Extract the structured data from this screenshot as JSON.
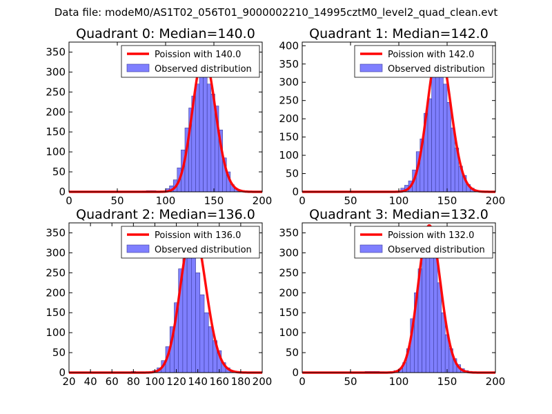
{
  "figure": {
    "suptitle": "Data file: modeM0/AS1T02_056T01_9000002210_14995cztM0_level2_quad_clean.evt"
  },
  "colors": {
    "bar_fill": "#7f7fff",
    "bar_edge": "#3a3a9a",
    "poisson_line": "#ff0000",
    "axis": "#000000"
  },
  "chart_data": [
    {
      "type": "bar",
      "title": "Quadrant 0: Median=140.0",
      "legend": [
        "Poission with 140.0",
        "Observed distribution"
      ],
      "legend_loc": "top-right",
      "median": 140.0,
      "xlim": [
        0,
        200
      ],
      "ylim": [
        0,
        375
      ],
      "xticks": [
        0,
        50,
        100,
        150,
        200
      ],
      "yticks": [
        0,
        50,
        100,
        150,
        200,
        250,
        300,
        350
      ],
      "bin_edges": [
        76,
        80,
        85,
        90,
        95,
        100,
        104,
        108,
        112,
        116,
        120,
        124,
        127,
        131,
        135,
        139,
        143,
        147,
        151,
        155,
        159,
        163,
        167,
        171,
        175,
        179,
        183
      ],
      "values": [
        2,
        3,
        3,
        2,
        0,
        8,
        15,
        30,
        60,
        105,
        160,
        210,
        240,
        270,
        290,
        310,
        270,
        245,
        215,
        155,
        85,
        50,
        18,
        8,
        3,
        1
      ]
    },
    {
      "type": "bar",
      "title": "Quadrant 1: Median=142.0",
      "legend": [
        "Poission with 142.0",
        "Observed distribution"
      ],
      "legend_loc": "top-right",
      "median": 142.0,
      "xlim": [
        0,
        200
      ],
      "ylim": [
        0,
        410
      ],
      "xticks": [
        0,
        50,
        100,
        150,
        200
      ],
      "yticks": [
        0,
        50,
        100,
        150,
        200,
        250,
        300,
        350,
        400
      ],
      "bin_edges": [
        102,
        106,
        110,
        114,
        118,
        122,
        126,
        130,
        134,
        138,
        142,
        146,
        150,
        154,
        158,
        162,
        166,
        170,
        174,
        178,
        182
      ],
      "values": [
        10,
        18,
        30,
        60,
        110,
        145,
        215,
        255,
        320,
        360,
        340,
        295,
        245,
        175,
        120,
        70,
        45,
        20,
        10,
        4
      ]
    },
    {
      "type": "bar",
      "title": "Quadrant 2: Median=136.0",
      "legend": [
        "Poission with 136.0",
        "Observed distribution"
      ],
      "legend_loc": "top-right",
      "median": 136.0,
      "xlim": [
        20,
        200
      ],
      "ylim": [
        0,
        375
      ],
      "xticks": [
        20,
        40,
        60,
        80,
        100,
        120,
        140,
        160,
        180,
        200
      ],
      "yticks": [
        0,
        50,
        100,
        150,
        200,
        250,
        300,
        350
      ],
      "bin_edges": [
        78,
        82,
        86,
        90,
        94,
        98,
        102,
        106,
        110,
        114,
        118,
        122,
        126,
        130,
        134,
        138,
        142,
        146,
        150,
        154,
        158,
        162,
        166,
        170,
        174
      ],
      "values": [
        3,
        0,
        2,
        0,
        0,
        5,
        12,
        30,
        65,
        115,
        175,
        260,
        285,
        330,
        300,
        250,
        195,
        150,
        115,
        80,
        55,
        25,
        12,
        5
      ]
    },
    {
      "type": "bar",
      "title": "Quadrant 3: Median=132.0",
      "legend": [
        "Poission with 132.0",
        "Observed distribution"
      ],
      "legend_loc": "top-right",
      "median": 132.0,
      "xlim": [
        0,
        200
      ],
      "ylim": [
        0,
        375
      ],
      "xticks": [
        0,
        50,
        100,
        150,
        200
      ],
      "yticks": [
        0,
        50,
        100,
        150,
        200,
        250,
        300,
        350
      ],
      "bin_edges": [
        65,
        70,
        75,
        80,
        85,
        90,
        95,
        100,
        104,
        108,
        112,
        116,
        120,
        124,
        128,
        132,
        136,
        140,
        144,
        148,
        152,
        156,
        160,
        164,
        168,
        172,
        176
      ],
      "values": [
        3,
        3,
        3,
        2,
        0,
        0,
        5,
        10,
        25,
        60,
        135,
        200,
        260,
        310,
        295,
        335,
        300,
        225,
        150,
        95,
        60,
        35,
        20,
        10,
        5,
        3
      ]
    }
  ]
}
